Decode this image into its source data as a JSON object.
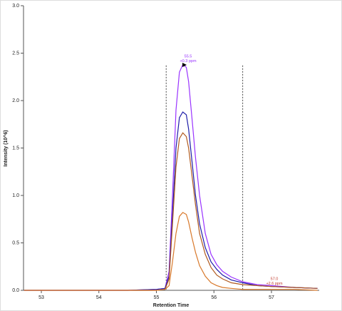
{
  "chart_data": {
    "type": "line",
    "x_label": "Retention Time",
    "y_label": "Intensity (10^6)",
    "x": [
      52.7,
      53.5,
      54.5,
      55.0,
      55.15,
      55.22,
      55.28,
      55.34,
      55.4,
      55.46,
      55.52,
      55.56,
      55.62,
      55.68,
      55.75,
      55.85,
      55.95,
      56.05,
      56.15,
      56.3,
      56.5,
      56.75,
      57.0,
      57.4,
      57.8
    ],
    "series": [
      {
        "color": "#9933ff",
        "values": [
          0,
          0,
          0,
          0.01,
          0.02,
          0.2,
          1.0,
          1.9,
          2.3,
          2.38,
          2.35,
          2.2,
          1.8,
          1.4,
          1.0,
          0.6,
          0.38,
          0.27,
          0.2,
          0.14,
          0.09,
          0.06,
          0.05,
          0.03,
          0.02
        ]
      },
      {
        "color": "#1c1ca8",
        "values": [
          0,
          0,
          0,
          0.01,
          0.02,
          0.15,
          0.8,
          1.5,
          1.82,
          1.88,
          1.85,
          1.7,
          1.35,
          1.0,
          0.7,
          0.45,
          0.3,
          0.22,
          0.16,
          0.11,
          0.08,
          0.05,
          0.04,
          0.03,
          0.02
        ]
      },
      {
        "color": "#b05a20",
        "values": [
          0,
          0,
          0,
          0,
          0.01,
          0.12,
          0.7,
          1.3,
          1.6,
          1.66,
          1.62,
          1.5,
          1.2,
          0.9,
          0.6,
          0.38,
          0.24,
          0.16,
          0.12,
          0.08,
          0.06,
          0.05,
          0.04,
          0.03,
          0.02
        ]
      },
      {
        "color": "#d8782a",
        "values": [
          0,
          0,
          0,
          0,
          0.01,
          0.05,
          0.3,
          0.6,
          0.78,
          0.82,
          0.8,
          0.72,
          0.55,
          0.4,
          0.26,
          0.15,
          0.08,
          0.05,
          0.03,
          0.02,
          0.01,
          0.01,
          0.01,
          0.01,
          0
        ]
      }
    ],
    "boundaries": [
      55.17,
      56.5
    ],
    "annotations": [
      {
        "lines": [
          "55.5",
          "+0.3 ppm"
        ],
        "color": "#9933ff"
      },
      {
        "lines": [
          "57.0",
          "+2.6 ppm"
        ],
        "color": "#c0392b"
      }
    ],
    "xlim": [
      52.69,
      57.83
    ],
    "ylim": [
      0,
      3
    ],
    "xticks": [
      53,
      54,
      55,
      56,
      57
    ],
    "yticks": [
      {
        "value": 0,
        "label": "0.0"
      },
      0.5,
      {
        "value": 1,
        "label": "1.0"
      },
      1.5,
      {
        "value": 2,
        "label": "2.0"
      },
      2.5,
      {
        "value": 3,
        "label": "3.0"
      }
    ]
  }
}
